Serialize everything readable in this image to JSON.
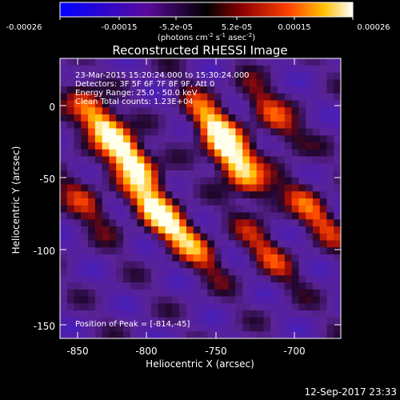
{
  "colorbar": {
    "ticks": [
      "-0.00026",
      "-0.00015",
      "-5.2e-05",
      "5.2e-05",
      "0.00015",
      "0.00026"
    ],
    "units_pre": "(photons cm",
    "units_exp1": "-2",
    "units_s": " s",
    "units_exp2": "-1",
    "units_asec": " asec",
    "units_exp3": "-2",
    "units_post": ")"
  },
  "plot": {
    "title": "Reconstructed RHESSI Image",
    "xlabel": "Heliocentric X (arcsec)",
    "ylabel": "Heliocentric Y (arcsec)",
    "xticks": [
      "-850",
      "-800",
      "-750",
      "-700"
    ],
    "yticks": [
      "0",
      "-50",
      "-100",
      "-150"
    ],
    "info": [
      "23-Mar-2015 15:20:24.000 to 15:30:24.000",
      "Detectors: 3F 5F 6F 7F 8F 9F, Att 0",
      "Energy Range: 25.0 - 50.0 keV",
      "Clean     Total counts: 1.23E+04"
    ],
    "peak": "Position of Peak = [-814,-45]"
  },
  "footer": {
    "date": "12-Sep-2017 23:33"
  },
  "colors": {
    "background": "#000000",
    "text": "#ffffff"
  },
  "image_map": {
    "xlim": [
      -862,
      -668
    ],
    "ylim": [
      -160,
      18
    ],
    "blobs": [
      {
        "x": -814,
        "y": -45,
        "amp": 1.0
      },
      {
        "x": -795,
        "y": -80,
        "amp": 0.85
      },
      {
        "x": -836,
        "y": -20,
        "amp": 0.75
      },
      {
        "x": -752,
        "y": -28,
        "amp": 0.9
      },
      {
        "x": -740,
        "y": -52,
        "amp": 0.8
      },
      {
        "x": -716,
        "y": -18,
        "amp": 0.55
      },
      {
        "x": -686,
        "y": -80,
        "amp": 0.55
      },
      {
        "x": -720,
        "y": -105,
        "amp": 0.45
      },
      {
        "x": -845,
        "y": -72,
        "amp": 0.45
      },
      {
        "x": -770,
        "y": -100,
        "amp": 0.5
      }
    ]
  }
}
